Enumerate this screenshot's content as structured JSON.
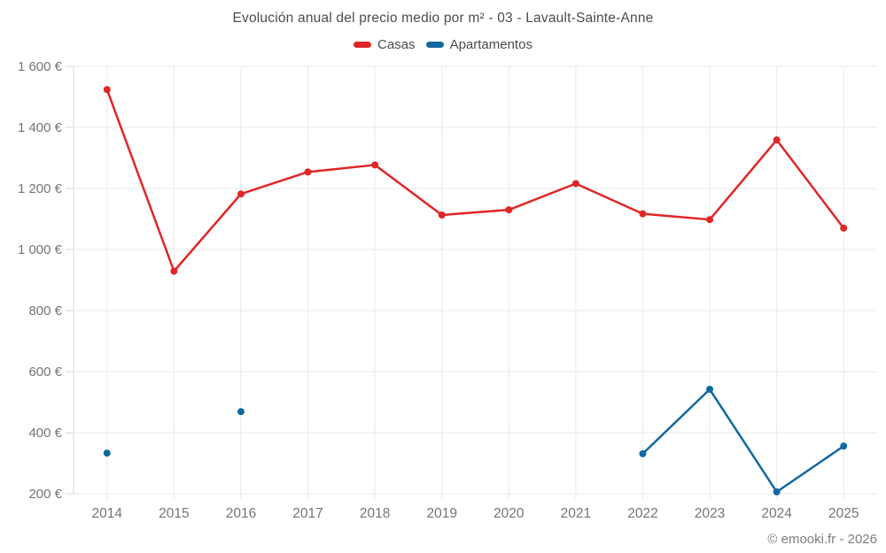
{
  "watermark": "© emooki.fr - 2026",
  "chart_data": {
    "type": "line",
    "title": "Evolución anual del precio medio por m² - 03 - Lavault-Sainte-Anne",
    "categories": [
      "2014",
      "2015",
      "2016",
      "2017",
      "2018",
      "2019",
      "2020",
      "2021",
      "2022",
      "2023",
      "2024",
      "2025"
    ],
    "series": [
      {
        "name": "Casas",
        "color": "#e02626",
        "values": [
          1524,
          929,
          1182,
          1254,
          1277,
          1113,
          1130,
          1216,
          1117,
          1098,
          1359,
          1070
        ]
      },
      {
        "name": "Apartamentos",
        "color": "#1169a2",
        "values": [
          333,
          null,
          469,
          null,
          null,
          null,
          null,
          null,
          331,
          542,
          206,
          356
        ]
      }
    ],
    "xlabel": "",
    "ylabel": "",
    "ylim": [
      200,
      1600
    ],
    "ytick_step": 200,
    "ytick_labels": [
      "200 €",
      "400 €",
      "600 €",
      "800 €",
      "1 000 €",
      "1 200 €",
      "1 400 €",
      "1 600 €"
    ],
    "grid": true,
    "legend_position": "top",
    "colors": {
      "background": "#ffffff",
      "grid": "#e9e9e9",
      "axis": "#d9d9d9",
      "tick_text": "#757575",
      "title_text": "#4c4c4c",
      "watermark_text": "#7d7d7d"
    }
  }
}
